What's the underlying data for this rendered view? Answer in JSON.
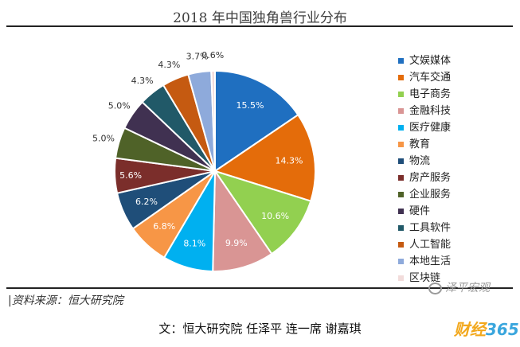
{
  "chart_data": {
    "type": "pie",
    "title": "2018 年中国独角兽行业分布",
    "categories": [
      "文娱媒体",
      "汽车交通",
      "电子商务",
      "金融科技",
      "医疗健康",
      "教育",
      "物流",
      "房产服务",
      "企业服务",
      "硬件",
      "工具软件",
      "人工智能",
      "本地生活",
      "区块链"
    ],
    "values": [
      15.5,
      14.3,
      10.6,
      9.9,
      8.1,
      6.8,
      6.2,
      5.6,
      5.0,
      5.0,
      4.3,
      4.3,
      3.7,
      0.6
    ],
    "value_labels": [
      "15.5%",
      "14.3%",
      "10.6%",
      "9.9%",
      "8.1%",
      "6.8%",
      "6.2%",
      "5.6%",
      "5.0%",
      "5.0%",
      "4.3%",
      "4.3%",
      "3.7%",
      "0.6%"
    ],
    "colors": [
      "#1f6fc0",
      "#e46c0a",
      "#92d050",
      "#d99594",
      "#00b0f0",
      "#f79646",
      "#1f4e79",
      "#7b2e2b",
      "#4f6228",
      "#403151",
      "#215968",
      "#c55a11",
      "#8eaadb",
      "#f2dcdb"
    ],
    "legend_position": "right",
    "start_angle": "top",
    "direction": "clockwise"
  },
  "source": "|资料来源：恒大研究院",
  "credit": "文：恒大研究院 任泽平 连一席 谢嘉琪",
  "watermarks": {
    "wechat": "泽平宏观",
    "site_text": "财经",
    "site_num": "365"
  }
}
